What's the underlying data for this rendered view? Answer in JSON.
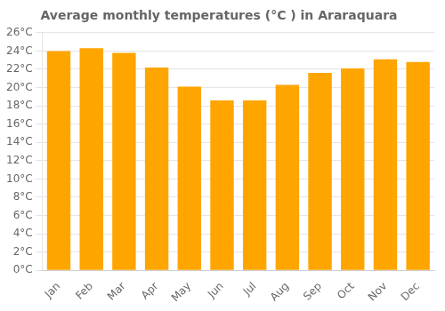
{
  "chart_data": {
    "type": "bar",
    "title": "Average monthly temperatures (°C ) in Araraquara",
    "categories": [
      "Jan",
      "Feb",
      "Mar",
      "Apr",
      "May",
      "Jun",
      "Jul",
      "Aug",
      "Sep",
      "Oct",
      "Nov",
      "Dec"
    ],
    "values": [
      24.0,
      24.3,
      23.8,
      22.2,
      20.1,
      18.6,
      18.6,
      20.3,
      21.6,
      22.1,
      23.1,
      22.8
    ],
    "color": "#FFA500",
    "ylim": [
      0,
      26
    ],
    "yticks": [
      {
        "value": 0,
        "label": "0°C"
      },
      {
        "value": 2,
        "label": "2°C"
      },
      {
        "value": 4,
        "label": "4°C"
      },
      {
        "value": 6,
        "label": "6°C"
      },
      {
        "value": 8,
        "label": "8°C"
      },
      {
        "value": 10,
        "label": "10°C"
      },
      {
        "value": 12,
        "label": "12°C"
      },
      {
        "value": 14,
        "label": "14°C"
      },
      {
        "value": 16,
        "label": "16°C"
      },
      {
        "value": 18,
        "label": "18°C"
      },
      {
        "value": 20,
        "label": "20°C"
      },
      {
        "value": 22,
        "label": "22°C"
      },
      {
        "value": 24,
        "label": "24°C"
      },
      {
        "value": 26,
        "label": "26°C"
      }
    ],
    "grid": true
  }
}
